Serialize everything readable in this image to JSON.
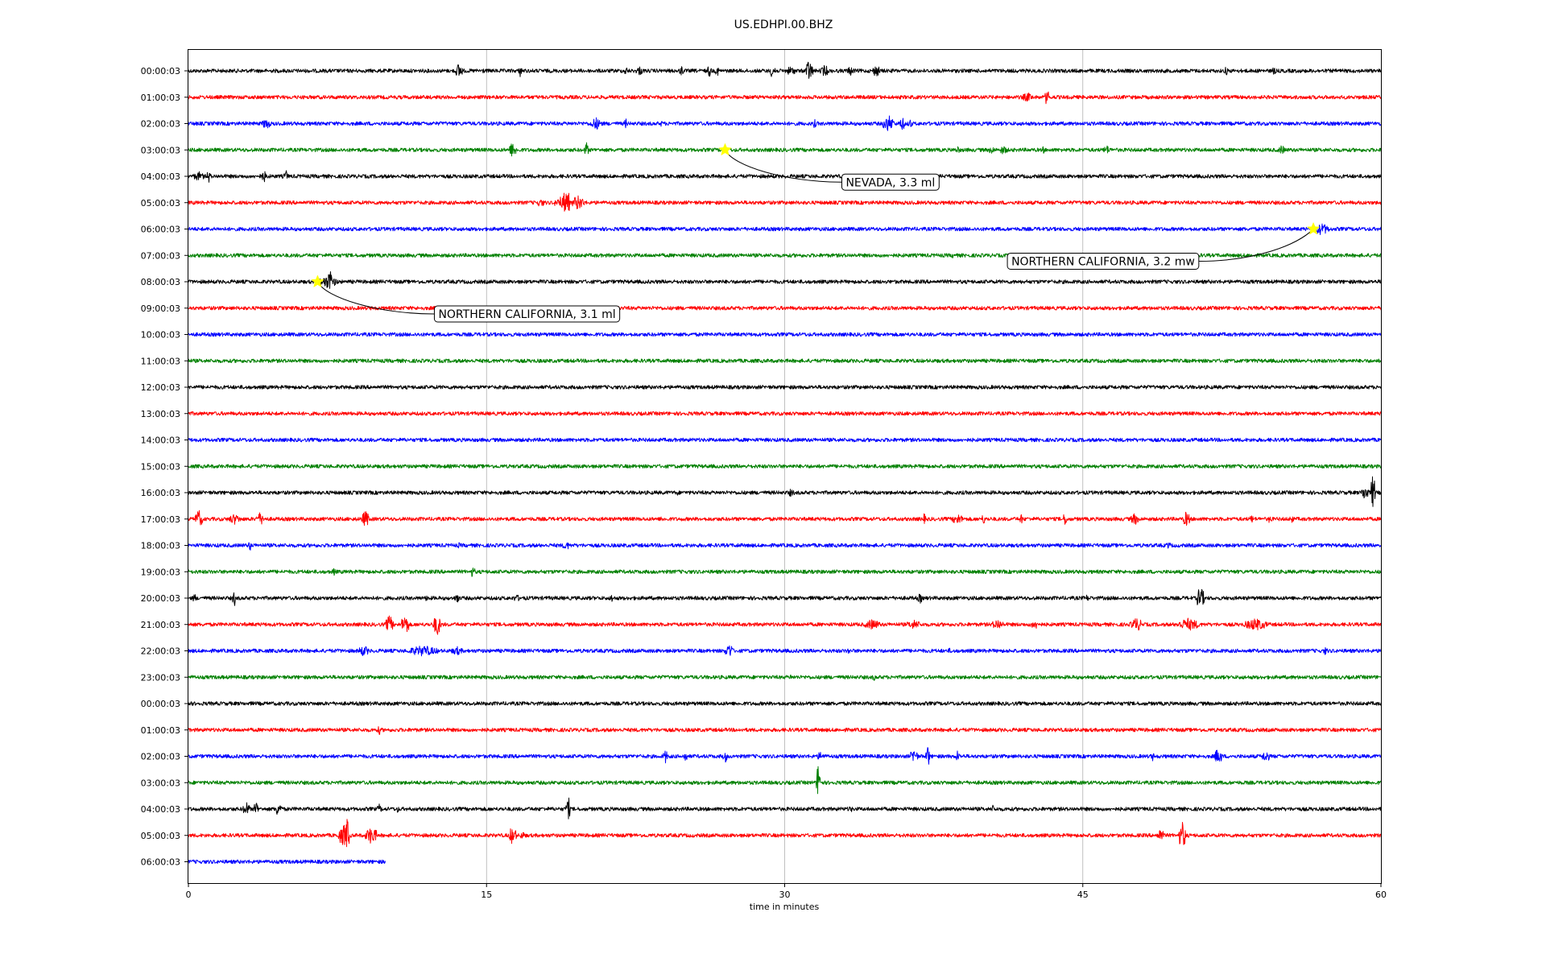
{
  "chart_data": {
    "type": "line",
    "title": "US.EDHPI.00.BHZ",
    "xlabel": "time in minutes",
    "ylabel": "",
    "xlim": [
      0,
      60
    ],
    "x_ticks": [
      "0",
      "15",
      "30",
      "45",
      "60"
    ],
    "grid": "vertical lines at 15-minute ticks",
    "trace_colors": [
      "#000000",
      "#ff0000",
      "#0000ff",
      "#008000"
    ],
    "rows": [
      {
        "label": "00:00:03",
        "end_minute": 60,
        "bursts": [
          [
            0.9,
            3,
            1
          ],
          [
            4.5,
            2,
            1
          ],
          [
            13.6,
            10,
            2
          ],
          [
            14.8,
            4,
            1
          ],
          [
            16.7,
            8,
            1
          ],
          [
            22.0,
            6,
            1
          ],
          [
            22.7,
            6,
            2
          ],
          [
            24.8,
            8,
            1
          ],
          [
            26.2,
            9,
            1
          ],
          [
            26.6,
            7,
            1
          ],
          [
            29.4,
            9,
            2
          ],
          [
            30.3,
            6,
            3
          ],
          [
            31.2,
            14,
            2
          ],
          [
            32.0,
            8,
            2
          ],
          [
            33.3,
            6,
            2
          ],
          [
            34.6,
            8,
            2
          ],
          [
            52.2,
            6,
            1
          ],
          [
            54.6,
            6,
            1
          ]
        ]
      },
      {
        "label": "01:00:03",
        "end_minute": 60,
        "bursts": [
          [
            42.2,
            6,
            3
          ],
          [
            43.2,
            12,
            1
          ]
        ]
      },
      {
        "label": "02:00:03",
        "end_minute": 60,
        "bursts": [
          [
            1.3,
            3,
            1
          ],
          [
            3.9,
            8,
            2
          ],
          [
            20.5,
            8,
            3
          ],
          [
            22.0,
            6,
            1
          ],
          [
            23.8,
            4,
            1
          ],
          [
            31.5,
            6,
            1
          ],
          [
            35.2,
            11,
            3
          ],
          [
            35.9,
            8,
            2
          ],
          [
            36.3,
            7,
            1
          ]
        ]
      },
      {
        "label": "03:00:03",
        "end_minute": 60,
        "bursts": [
          [
            16.3,
            10,
            2
          ],
          [
            20.0,
            12,
            1
          ],
          [
            38.7,
            6,
            1
          ],
          [
            40.4,
            5,
            2
          ],
          [
            41.0,
            6,
            2
          ],
          [
            43.0,
            5,
            1
          ],
          [
            46.2,
            6,
            2
          ],
          [
            55.0,
            6,
            2
          ]
        ]
      },
      {
        "label": "04:00:03",
        "end_minute": 60,
        "bursts": [
          [
            0.5,
            6,
            3
          ],
          [
            1.0,
            9,
            1
          ],
          [
            3.8,
            7,
            2
          ],
          [
            4.9,
            8,
            1
          ]
        ]
      },
      {
        "label": "05:00:03",
        "end_minute": 60,
        "bursts": [
          [
            17.7,
            5,
            3
          ],
          [
            18.7,
            8,
            3
          ],
          [
            19.0,
            20,
            2
          ],
          [
            19.6,
            10,
            3
          ]
        ]
      },
      {
        "label": "06:00:03",
        "end_minute": 60,
        "bursts": [
          [
            57.0,
            8,
            4
          ]
        ]
      },
      {
        "label": "07:00:03",
        "end_minute": 60,
        "bursts": [
          [
            38.5,
            4,
            2
          ]
        ]
      },
      {
        "label": "08:00:03",
        "end_minute": 60,
        "bursts": [
          [
            7.0,
            8,
            5
          ],
          [
            7.1,
            18,
            1
          ]
        ]
      },
      {
        "label": "09:00:03",
        "end_minute": 60,
        "bursts": []
      },
      {
        "label": "10:00:03",
        "end_minute": 60,
        "bursts": []
      },
      {
        "label": "11:00:03",
        "end_minute": 60,
        "bursts": []
      },
      {
        "label": "12:00:03",
        "end_minute": 60,
        "bursts": []
      },
      {
        "label": "13:00:03",
        "end_minute": 60,
        "bursts": []
      },
      {
        "label": "14:00:03",
        "end_minute": 60,
        "bursts": []
      },
      {
        "label": "15:00:03",
        "end_minute": 60,
        "bursts": []
      },
      {
        "label": "16:00:03",
        "end_minute": 60,
        "bursts": [
          [
            24.6,
            4,
            1
          ],
          [
            30.3,
            5,
            2
          ],
          [
            59.2,
            10,
            2
          ],
          [
            59.6,
            28,
            1
          ]
        ]
      },
      {
        "label": "17:00:03",
        "end_minute": 60,
        "bursts": [
          [
            0.5,
            12,
            2
          ],
          [
            2.3,
            7,
            3
          ],
          [
            3.6,
            9,
            2
          ],
          [
            8.9,
            11,
            2
          ],
          [
            23.8,
            4,
            1
          ],
          [
            37.0,
            7,
            1
          ],
          [
            38.7,
            7,
            3
          ],
          [
            40.0,
            7,
            1
          ],
          [
            41.9,
            7,
            1
          ],
          [
            44.1,
            9,
            1
          ],
          [
            47.6,
            8,
            2
          ],
          [
            50.2,
            10,
            2
          ],
          [
            53.5,
            6,
            1
          ],
          [
            54.4,
            6,
            1
          ],
          [
            55.5,
            6,
            1
          ]
        ]
      },
      {
        "label": "18:00:03",
        "end_minute": 60,
        "bursts": [
          [
            1.5,
            3,
            1
          ],
          [
            3.1,
            7,
            1
          ],
          [
            13.6,
            4,
            1
          ],
          [
            19.0,
            6,
            2
          ],
          [
            27.6,
            4,
            1
          ],
          [
            49.3,
            6,
            1
          ]
        ]
      },
      {
        "label": "19:00:03",
        "end_minute": 60,
        "bursts": [
          [
            7.3,
            6,
            1
          ],
          [
            14.3,
            8,
            1
          ]
        ]
      },
      {
        "label": "20:00:03",
        "end_minute": 60,
        "bursts": [
          [
            0.3,
            6,
            1
          ],
          [
            2.3,
            10,
            1
          ],
          [
            12.0,
            5,
            1
          ],
          [
            13.5,
            9,
            1
          ],
          [
            16.5,
            5,
            2
          ],
          [
            21.3,
            6,
            1
          ],
          [
            36.8,
            8,
            1
          ],
          [
            45.2,
            5,
            1
          ],
          [
            50.9,
            15,
            2
          ]
        ]
      },
      {
        "label": "21:00:03",
        "end_minute": 60,
        "bursts": [
          [
            10.1,
            12,
            2
          ],
          [
            10.9,
            14,
            2
          ],
          [
            12.5,
            14,
            2
          ],
          [
            34.4,
            7,
            4
          ],
          [
            36.5,
            6,
            4
          ],
          [
            40.7,
            7,
            3
          ],
          [
            42.6,
            6,
            3
          ],
          [
            47.7,
            9,
            3
          ],
          [
            50.3,
            8,
            6
          ],
          [
            53.7,
            8,
            6
          ]
        ]
      },
      {
        "label": "22:00:03",
        "end_minute": 60,
        "bursts": [
          [
            8.8,
            7,
            3
          ],
          [
            11.8,
            7,
            8
          ],
          [
            13.5,
            6,
            3
          ],
          [
            27.2,
            10,
            2
          ],
          [
            33.2,
            5,
            1
          ],
          [
            38.3,
            4,
            1
          ],
          [
            57.2,
            6,
            1
          ]
        ]
      },
      {
        "label": "23:00:03",
        "end_minute": 60,
        "bursts": [
          [
            30.3,
            4,
            1
          ],
          [
            34.5,
            5,
            1
          ]
        ]
      },
      {
        "label": "00:00:03",
        "end_minute": 60,
        "bursts": []
      },
      {
        "label": "01:00:03",
        "end_minute": 60,
        "bursts": [
          [
            9.6,
            6,
            1
          ]
        ]
      },
      {
        "label": "02:00:03",
        "end_minute": 60,
        "bursts": [
          [
            24.0,
            10,
            1
          ],
          [
            25.0,
            8,
            1
          ],
          [
            27.0,
            9,
            1
          ],
          [
            31.8,
            6,
            2
          ],
          [
            36.5,
            10,
            2
          ],
          [
            37.2,
            14,
            1
          ],
          [
            38.7,
            8,
            1
          ],
          [
            48.5,
            6,
            1
          ],
          [
            51.8,
            11,
            2
          ],
          [
            54.2,
            8,
            2
          ]
        ]
      },
      {
        "label": "03:00:03",
        "end_minute": 60,
        "bursts": [
          [
            31.7,
            30,
            1
          ]
        ]
      },
      {
        "label": "04:00:03",
        "end_minute": 60,
        "bursts": [
          [
            2.9,
            9,
            2
          ],
          [
            3.4,
            12,
            1
          ],
          [
            4.5,
            9,
            2
          ],
          [
            9.6,
            7,
            1
          ],
          [
            10.5,
            5,
            1
          ],
          [
            19.1,
            16,
            1
          ],
          [
            33.3,
            5,
            1
          ],
          [
            40.5,
            6,
            1
          ]
        ]
      },
      {
        "label": "05:00:03",
        "end_minute": 60,
        "bursts": [
          [
            7.8,
            14,
            3
          ],
          [
            8.0,
            26,
            1
          ],
          [
            9.2,
            12,
            3
          ],
          [
            16.3,
            12,
            2
          ],
          [
            16.8,
            5,
            2
          ],
          [
            48.9,
            9,
            2
          ],
          [
            50.0,
            18,
            2
          ]
        ]
      },
      {
        "label": "06:00:03",
        "end_minute": 9.9,
        "bursts": []
      }
    ],
    "events": [
      {
        "label": "NEVADA, 3.3 ml",
        "row": 3,
        "minute": 27.0
      },
      {
        "label": "NORTHERN CALIFORNIA, 3.2 mw",
        "row": 6,
        "minute": 56.6
      },
      {
        "label": "NORTHERN CALIFORNIA, 3.1 ml",
        "row": 8,
        "minute": 6.5
      }
    ]
  }
}
